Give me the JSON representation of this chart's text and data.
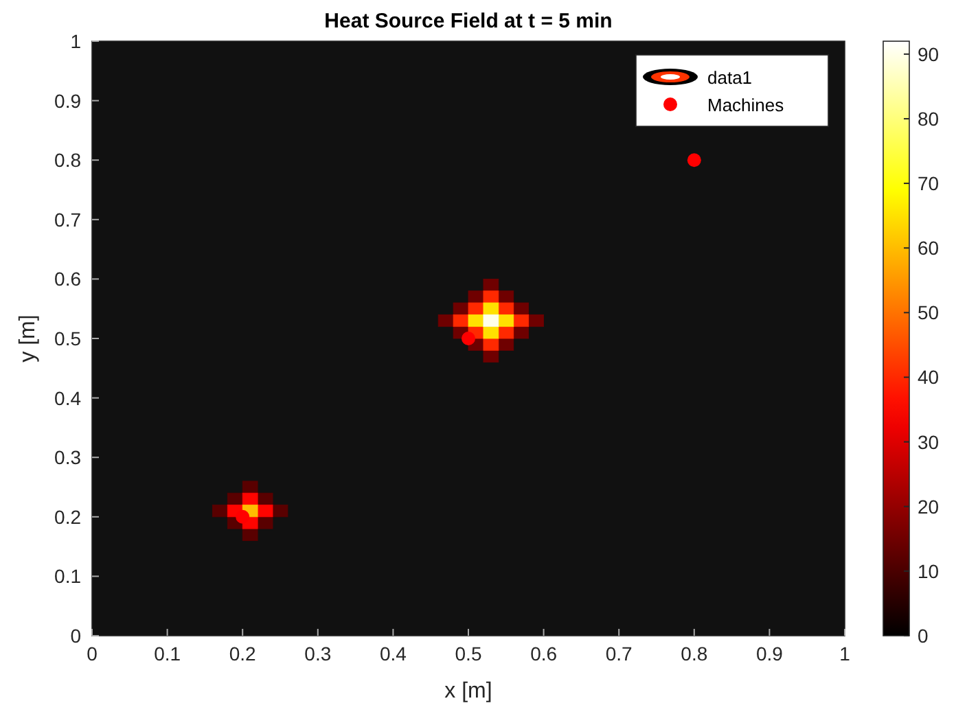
{
  "chart_data": {
    "type": "scatter",
    "title": "Heat Source Field at t = 5 min",
    "xlabel": "x [m]",
    "ylabel": "y [m]",
    "xlim": [
      0,
      1
    ],
    "ylim": [
      0,
      1
    ],
    "xticks": [
      0,
      0.1,
      0.2,
      0.3,
      0.4,
      0.5,
      0.6,
      0.7,
      0.8,
      0.9,
      1
    ],
    "yticks": [
      0,
      0.1,
      0.2,
      0.3,
      0.4,
      0.5,
      0.6,
      0.7,
      0.8,
      0.9,
      1
    ],
    "clim": [
      0,
      92
    ],
    "cticks": [
      0,
      10,
      20,
      30,
      40,
      50,
      60,
      70,
      80,
      90
    ],
    "legend": "top right",
    "series": [
      {
        "name": "data1",
        "marker": "square",
        "x": [
          0.59,
          0.47,
          0.53,
          0.53,
          0.57,
          0.57,
          0.49,
          0.49,
          0.55,
          0.55,
          0.51,
          0.51,
          0.57,
          0.49,
          0.53,
          0.53,
          0.55,
          0.55,
          0.51,
          0.51,
          0.55,
          0.51,
          0.53,
          0.53,
          0.53,
          0.25,
          0.17,
          0.21,
          0.21,
          0.23,
          0.23,
          0.19,
          0.19,
          0.23,
          0.19,
          0.21,
          0.21,
          0.21
        ],
        "values": [
          0.53,
          0.53,
          0.59,
          0.47,
          0.55,
          0.51,
          0.55,
          0.51,
          0.57,
          0.49,
          0.57,
          0.49,
          0.53,
          0.53,
          0.57,
          0.49,
          0.55,
          0.51,
          0.55,
          0.51,
          0.53,
          0.53,
          0.55,
          0.51,
          0.53,
          0.21,
          0.21,
          0.25,
          0.17,
          0.23,
          0.19,
          0.23,
          0.19,
          0.21,
          0.21,
          0.23,
          0.19,
          0.21
        ],
        "cvalues": [
          15,
          15,
          15,
          15,
          15,
          15,
          15,
          15,
          15,
          15,
          15,
          15,
          40,
          40,
          40,
          40,
          40,
          40,
          40,
          40,
          65,
          65,
          65,
          65,
          90,
          12,
          12,
          12,
          12,
          12,
          12,
          12,
          12,
          35,
          35,
          35,
          35,
          60
        ],
        "colors": [
          "#6f0000",
          "#6f0000",
          "#6f0000",
          "#6f0000",
          "#6f0000",
          "#6f0000",
          "#6f0000",
          "#6f0000",
          "#6f0000",
          "#6f0000",
          "#6f0000",
          "#6f0000",
          "#ff2900",
          "#ff2900",
          "#ff2900",
          "#ff2900",
          "#ff2900",
          "#ff2900",
          "#ff2900",
          "#ff2900",
          "#ffe100",
          "#ffe100",
          "#ffe100",
          "#ffe100",
          "#ffffe9",
          "#590000",
          "#590000",
          "#590000",
          "#590000",
          "#590000",
          "#590000",
          "#590000",
          "#590000",
          "#ff0400",
          "#ff0400",
          "#ff0400",
          "#ff0400",
          "#ffbc00"
        ]
      },
      {
        "name": "Machines",
        "marker": "circle",
        "x": [
          0.2,
          0.5,
          0.8
        ],
        "values": [
          0.2,
          0.5,
          0.8
        ],
        "color": "#ff0000"
      }
    ]
  }
}
